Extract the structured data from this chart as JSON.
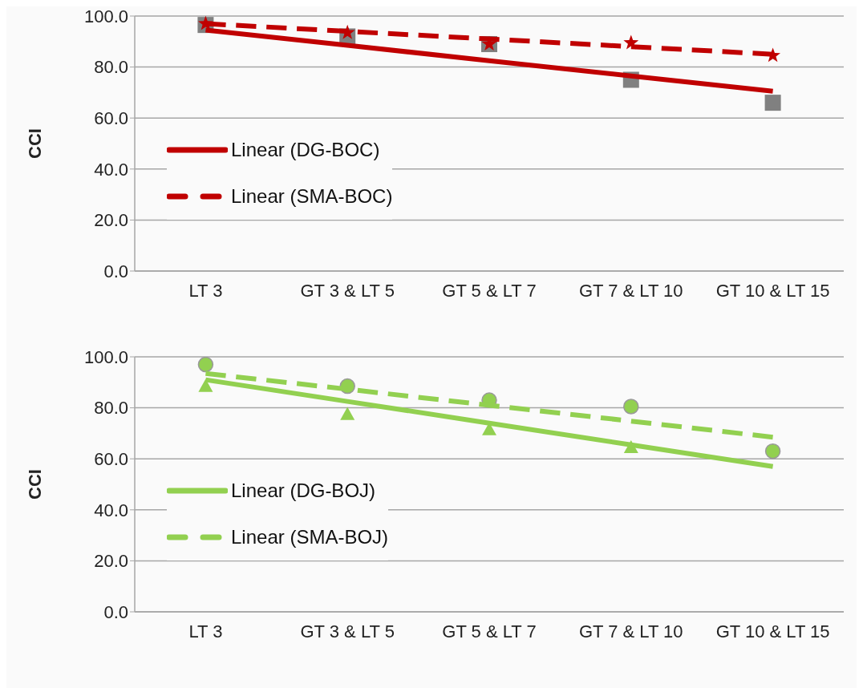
{
  "chart_data": [
    {
      "type": "line",
      "ylabel": "CCI",
      "categories": [
        "LT 3",
        "GT 3 & LT 5",
        "GT 5 & LT 7",
        "GT 7 & LT 10",
        "GT 10 & LT 15"
      ],
      "ylim": [
        0,
        100
      ],
      "yticks": [
        {
          "value": 0,
          "label": "0.0"
        },
        {
          "value": 20,
          "label": "20.0"
        },
        {
          "value": 40,
          "label": "40.0"
        },
        {
          "value": 60,
          "label": "60.0"
        },
        {
          "value": 80,
          "label": "80.0"
        },
        {
          "value": 100,
          "label": "100.0"
        }
      ],
      "grid": "y",
      "legend": "left",
      "series": [
        {
          "type": "scatter",
          "marker": "square",
          "color": "#808080",
          "values": [
            96.5,
            92,
            89,
            75,
            66
          ]
        },
        {
          "type": "scatter",
          "marker": "star",
          "color": "#c00000",
          "values": [
            97,
            93.5,
            89,
            89.5,
            84.5
          ]
        },
        {
          "type": "line",
          "name": "Linear (DG-BOC)",
          "marker": "none",
          "line_style": "solid",
          "color": "#c00000",
          "values": [
            94.5,
            88.5,
            82.5,
            76.5,
            70.5
          ]
        },
        {
          "type": "line",
          "name": "Linear (SMA-BOC)",
          "marker": "none",
          "line_style": "dashed",
          "color": "#c00000",
          "values": [
            97,
            94,
            91,
            88,
            85
          ]
        }
      ]
    },
    {
      "type": "line",
      "ylabel": "CCI",
      "categories": [
        "LT 3",
        "GT 3 & LT 5",
        "GT 5 & LT 7",
        "GT 7 & LT 10",
        "GT 10 & LT 15"
      ],
      "ylim": [
        0,
        100
      ],
      "yticks": [
        {
          "value": 0,
          "label": "0.0"
        },
        {
          "value": 20,
          "label": "20.0"
        },
        {
          "value": 40,
          "label": "40.0"
        },
        {
          "value": 60,
          "label": "60.0"
        },
        {
          "value": 80,
          "label": "80.0"
        },
        {
          "value": 100,
          "label": "100.0"
        }
      ],
      "grid": "y",
      "legend": "left",
      "series": [
        {
          "type": "scatter",
          "marker": "triangle",
          "color": "#92d050",
          "values": [
            88.5,
            77.5,
            71.5,
            64.5,
            null
          ]
        },
        {
          "type": "scatter",
          "marker": "circle",
          "color": "#92d050",
          "values": [
            97,
            88.5,
            83,
            80.5,
            63
          ]
        },
        {
          "type": "line",
          "name": "Linear (DG-BOJ)",
          "marker": "none",
          "line_style": "solid",
          "color": "#92d050",
          "values": [
            91,
            82.5,
            74,
            65.5,
            57
          ]
        },
        {
          "type": "line",
          "name": "Linear (SMA-BOJ)",
          "marker": "none",
          "line_style": "dashed",
          "color": "#92d050",
          "values": [
            93.5,
            87.3,
            81,
            74.8,
            68.5
          ]
        }
      ]
    }
  ]
}
